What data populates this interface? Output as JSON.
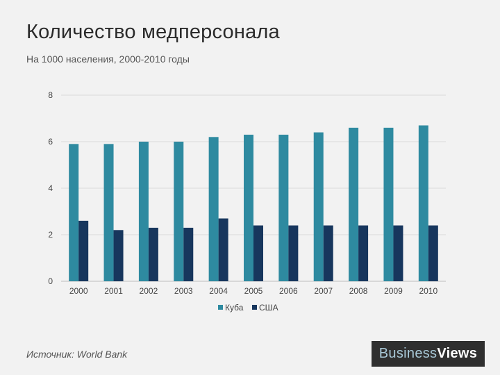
{
  "header": {
    "title": "Количество медперсонала",
    "subtitle": "На 1000 населения, 2000-2010 годы"
  },
  "footer": {
    "source": "Источник: World Bank",
    "logo_part1": "Business",
    "logo_part2": "Views"
  },
  "colors": {
    "cuba": "#2e8aa0",
    "usa": "#17365d",
    "grid": "#d9d9d9",
    "axis": "#bfbfbf"
  },
  "chart_data": {
    "type": "bar",
    "title": "Количество медперсонала",
    "subtitle": "На 1000 населения, 2000-2010 годы",
    "categories": [
      "2000",
      "2001",
      "2002",
      "2003",
      "2004",
      "2005",
      "2006",
      "2007",
      "2008",
      "2009",
      "2010"
    ],
    "series": [
      {
        "name": "Куба",
        "values": [
          5.9,
          5.9,
          6.0,
          6.0,
          6.2,
          6.3,
          6.3,
          6.4,
          6.6,
          6.6,
          6.7
        ]
      },
      {
        "name": "США",
        "values": [
          2.6,
          2.2,
          2.3,
          2.3,
          2.7,
          2.4,
          2.4,
          2.4,
          2.4,
          2.4,
          2.4
        ]
      }
    ],
    "ylim": [
      0,
      8
    ],
    "yticks": [
      "0",
      "2",
      "4",
      "6",
      "8"
    ],
    "grid": true,
    "legend": "bottom"
  }
}
